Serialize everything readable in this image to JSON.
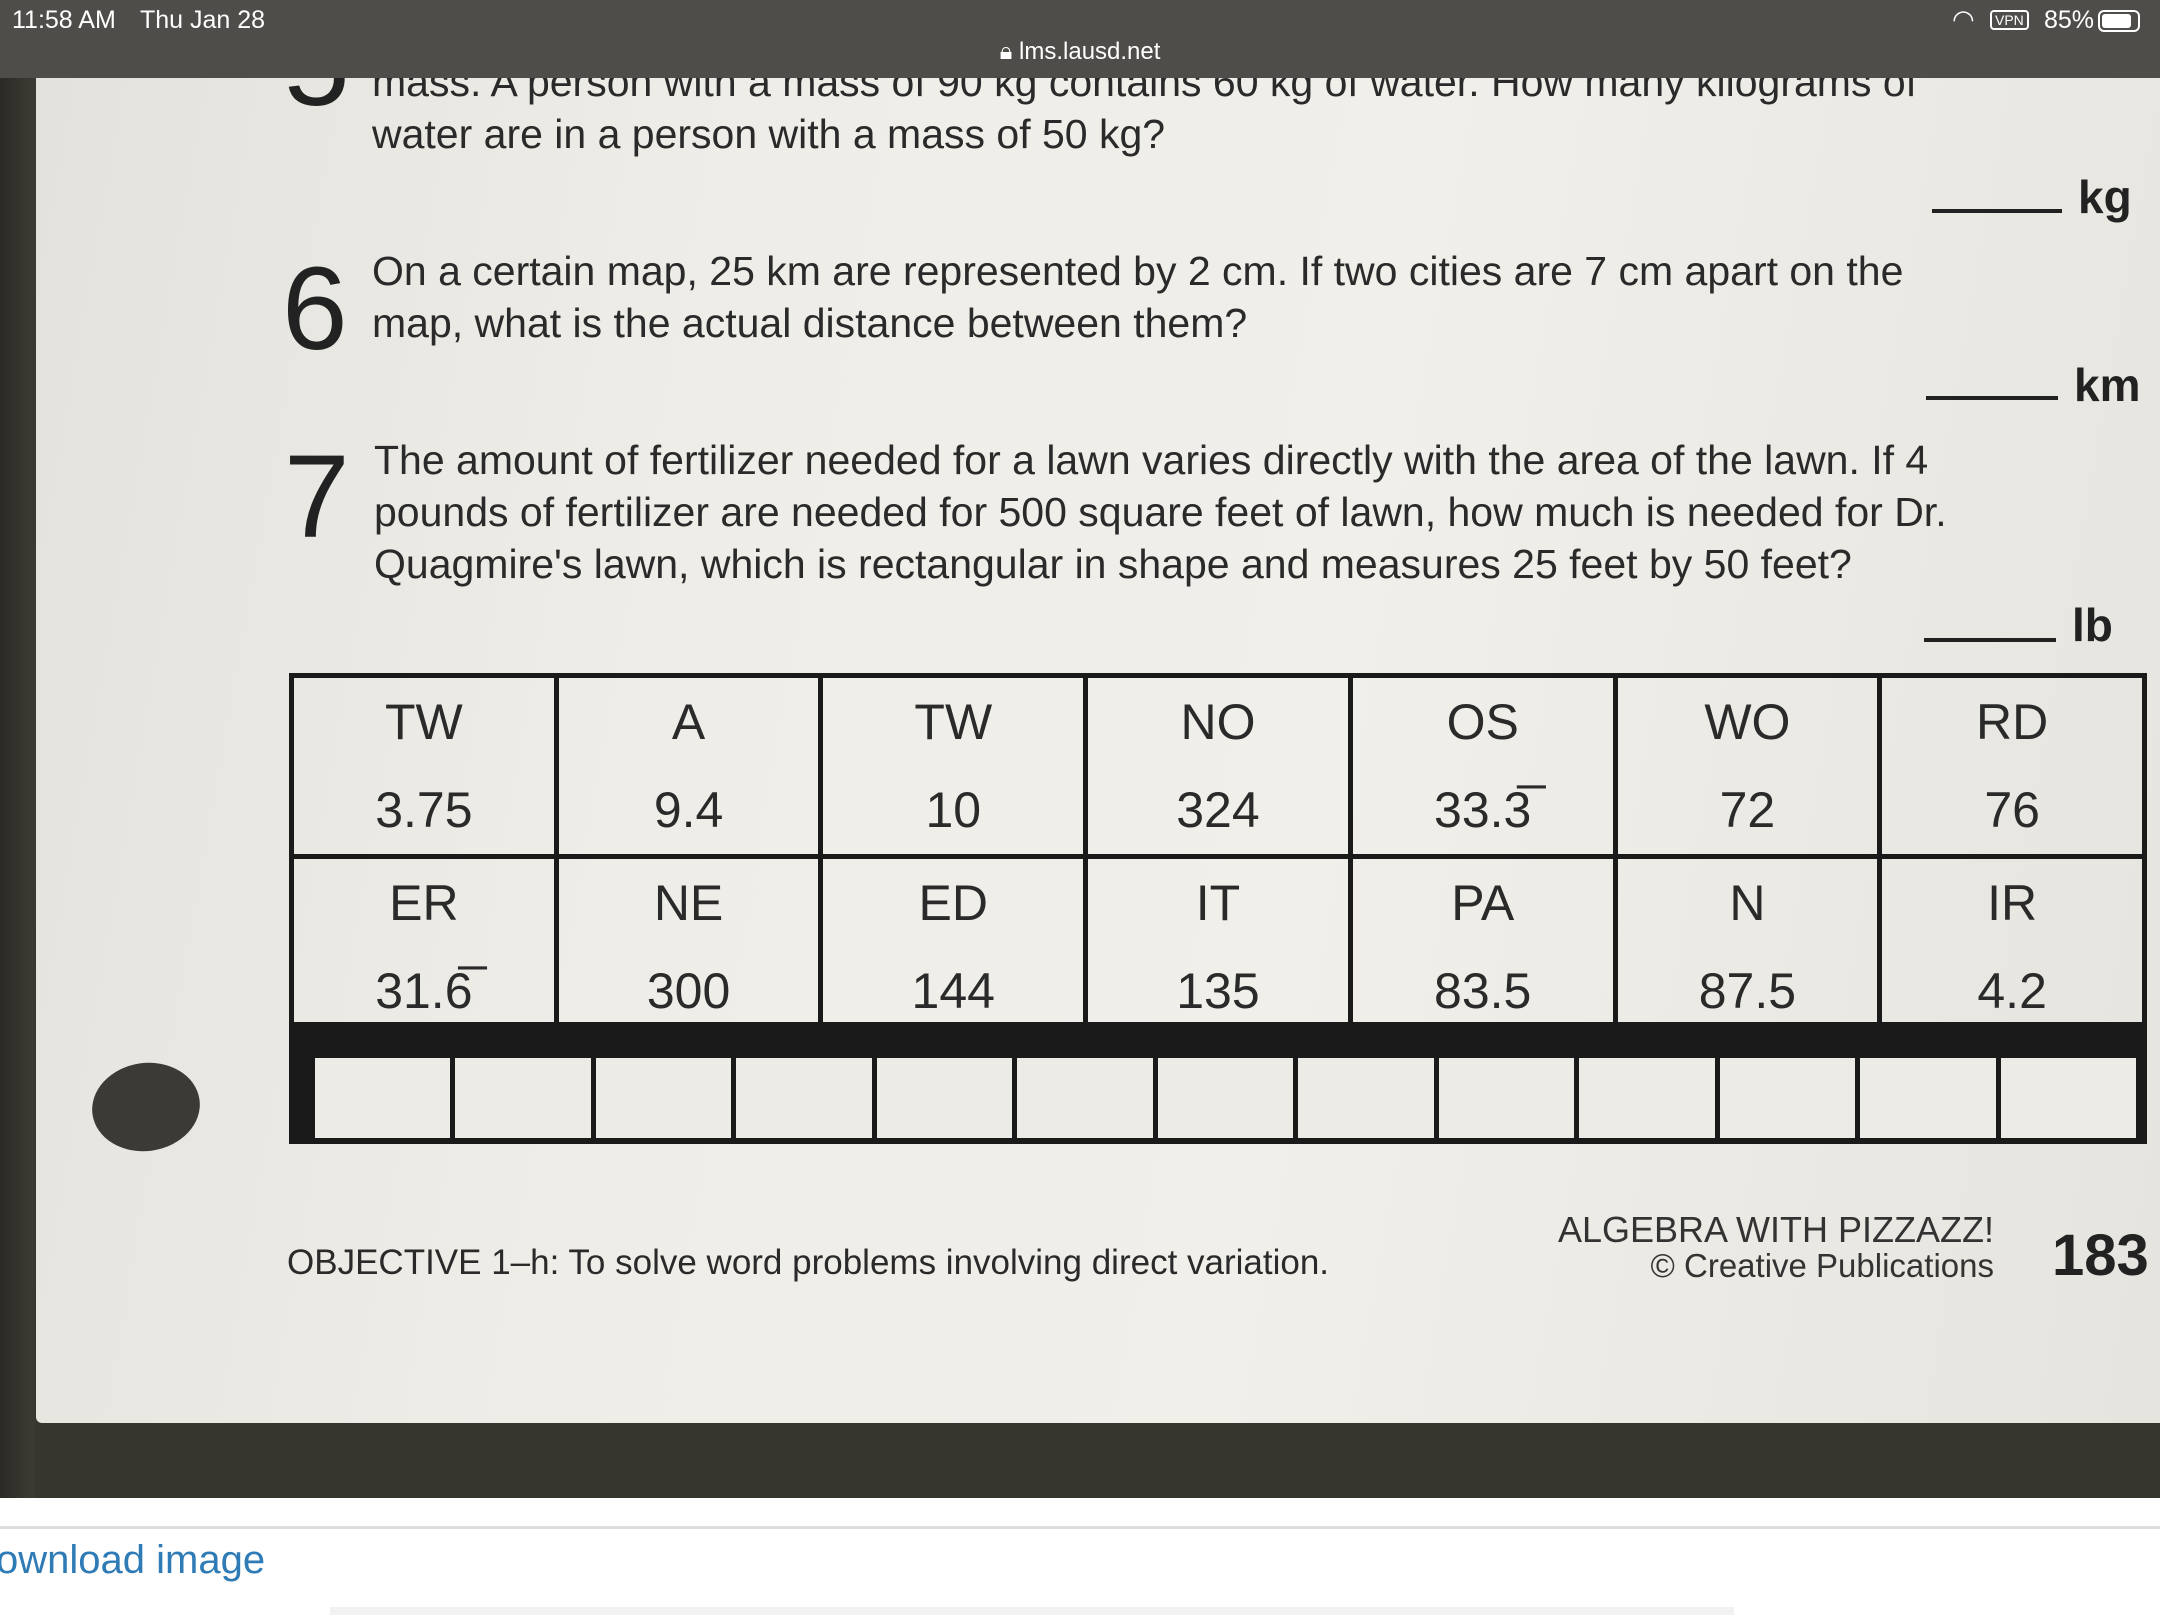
{
  "status_bar": {
    "time": "11:58 AM",
    "date": "Thu Jan 28",
    "vpn": "VPN",
    "battery": "85%",
    "url": "lms.lausd.net"
  },
  "worksheet": {
    "q5": {
      "number": "5",
      "line1": "mass. A person with a mass of 90 kg contains 60 kg of water. How many kilograms of",
      "line2": "water are in a person with a mass of 50 kg?",
      "unit": "kg"
    },
    "q6": {
      "number": "6",
      "line1": "On a certain map, 25 km are represented by 2 cm. If two cities are 7 cm apart on the",
      "line2": "map, what is the actual distance between them?",
      "unit": "km"
    },
    "q7": {
      "number": "7",
      "line1": "The amount of fertilizer needed for a lawn varies directly with the area of the lawn. If 4",
      "line2": "pounds of fertilizer are needed for 500 square feet of lawn, how much is needed for Dr.",
      "line3": "Quagmire's lawn, which is rectangular in shape and measures 25 feet by 50 feet?",
      "unit": "lb"
    },
    "code_table": [
      [
        {
          "code": "TW",
          "value": "3.75"
        },
        {
          "code": "A",
          "value": "9.4"
        },
        {
          "code": "TW",
          "value": "10"
        },
        {
          "code": "NO",
          "value": "324"
        },
        {
          "code": "OS",
          "value": "33.3̅"
        },
        {
          "code": "WO",
          "value": "72"
        },
        {
          "code": "RD",
          "value": "76"
        }
      ],
      [
        {
          "code": "ER",
          "value": "31.6̅"
        },
        {
          "code": "NE",
          "value": "300"
        },
        {
          "code": "ED",
          "value": "144"
        },
        {
          "code": "IT",
          "value": "135"
        },
        {
          "code": "PA",
          "value": "83.5"
        },
        {
          "code": "N",
          "value": "87.5"
        },
        {
          "code": "IR",
          "value": "4.2"
        }
      ]
    ],
    "objective": "OBJECTIVE 1–h: To solve word problems involving direct variation.",
    "publisher": "ALGEBRA WITH PIZZAZZ!",
    "copyright": "© Creative Publications",
    "page_number": "183"
  },
  "download_link": "ownload image"
}
